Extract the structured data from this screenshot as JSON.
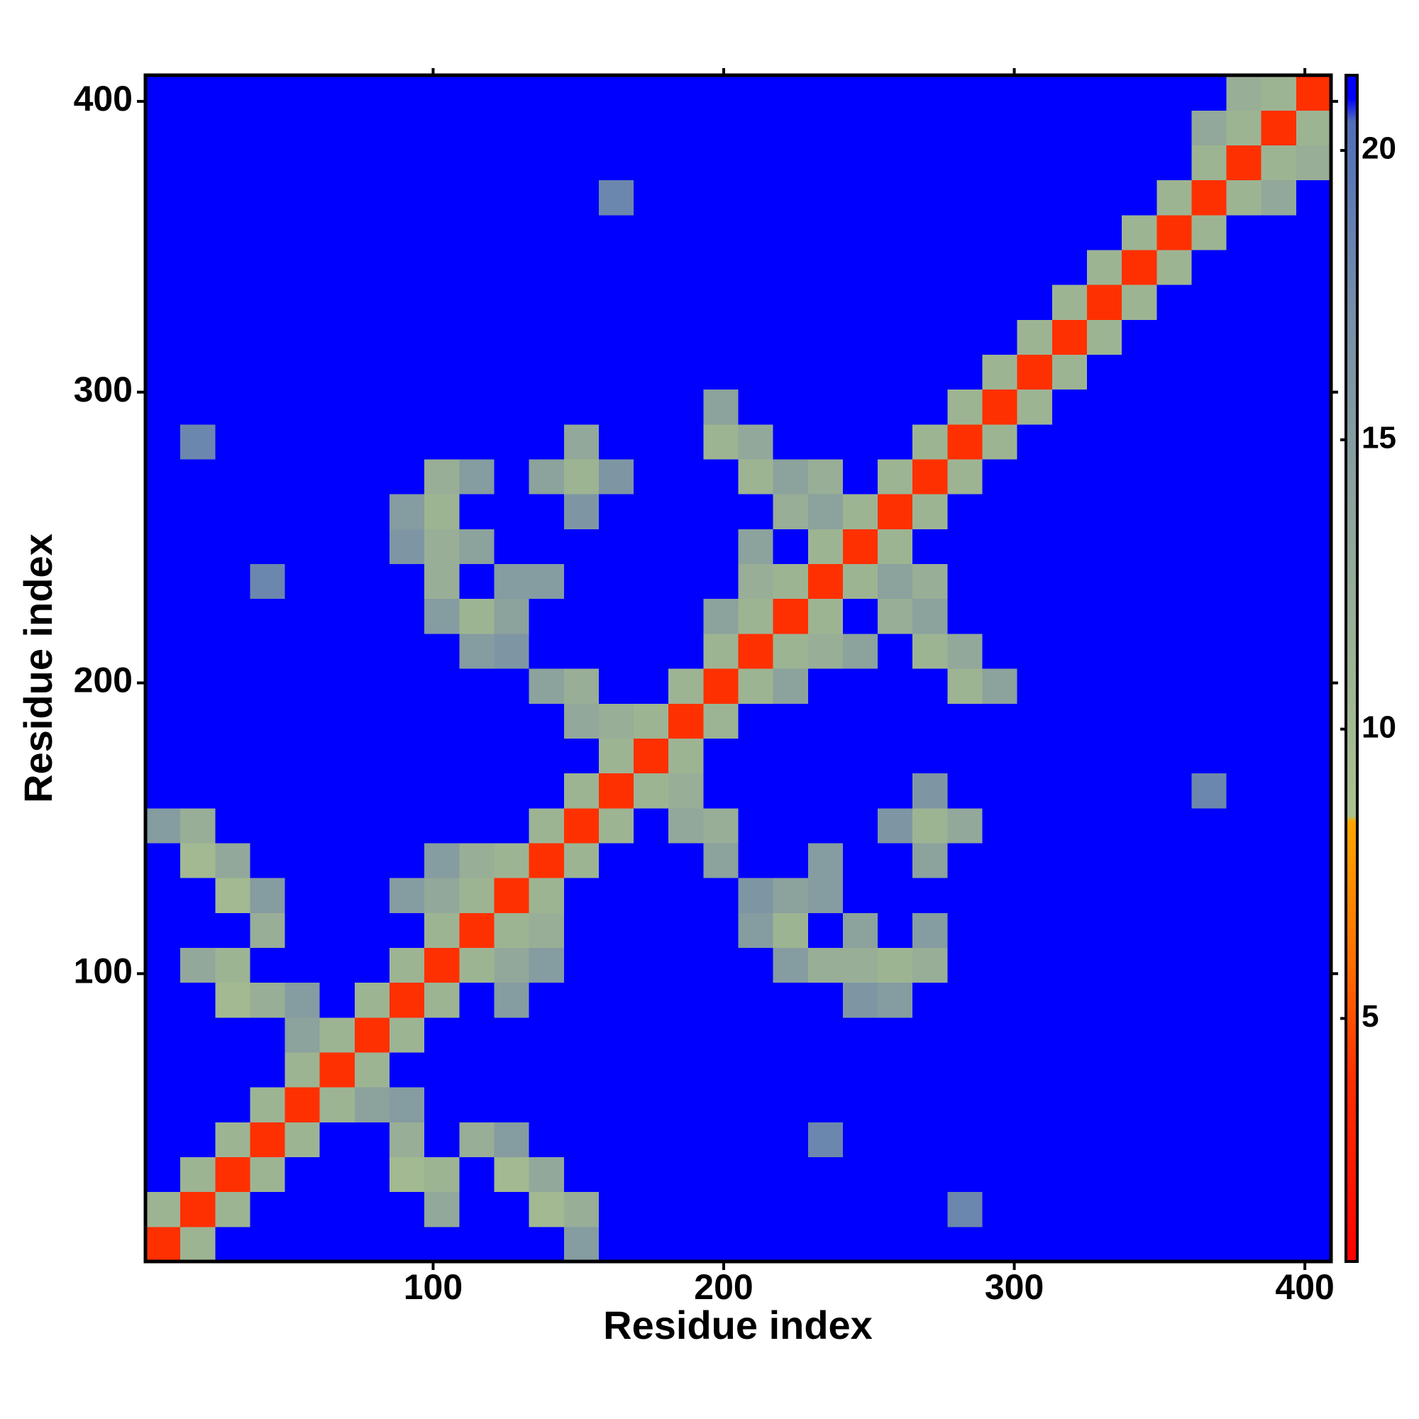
{
  "chart_data": {
    "type": "heatmap",
    "x_label": "Residue index",
    "y_label": "Residue index",
    "xlim": [
      1,
      409
    ],
    "ylim": [
      1,
      409
    ],
    "xticks": [
      100,
      200,
      300,
      400
    ],
    "yticks": [
      100,
      200,
      300,
      400
    ],
    "x_edges": [
      1,
      13,
      25,
      37,
      49,
      61,
      73,
      85,
      97,
      109,
      121,
      133,
      145,
      157,
      169,
      181,
      193,
      205,
      217,
      229,
      241,
      253,
      265,
      277,
      289,
      301,
      313,
      325,
      337,
      349,
      361,
      373,
      385,
      397,
      409
    ],
    "y_edges": [
      1,
      13,
      25,
      37,
      49,
      61,
      73,
      85,
      97,
      109,
      121,
      133,
      145,
      157,
      169,
      181,
      193,
      205,
      217,
      229,
      241,
      253,
      265,
      277,
      289,
      301,
      313,
      325,
      337,
      349,
      361,
      373,
      385,
      397,
      409
    ],
    "zlim": [
      0.8,
      21.3
    ],
    "zticks": [
      5,
      10,
      15,
      20
    ],
    "colorscale": [
      {
        "value": 0.8,
        "color": "#ff0000"
      },
      {
        "value": 4,
        "color": "#ff3000"
      },
      {
        "value": 6,
        "color": "#ff7000"
      },
      {
        "value": 8.4,
        "color": "#ffa500"
      },
      {
        "value": 8.5,
        "color": "#a9c28d"
      },
      {
        "value": 12,
        "color": "#98ae96"
      },
      {
        "value": 17,
        "color": "#7890a8"
      },
      {
        "value": 20.5,
        "color": "#4f6fb8"
      },
      {
        "value": 20.9,
        "color": "#0000ff"
      },
      {
        "value": 21.3,
        "color": "#0000ff"
      }
    ],
    "z": [
      [
        4,
        11,
        21,
        21,
        21,
        21,
        21,
        21,
        21,
        21,
        21,
        21,
        15,
        21,
        21,
        21,
        21,
        21,
        21,
        21,
        21,
        21,
        21,
        21,
        21,
        21,
        21,
        21,
        21,
        21,
        21,
        21,
        21,
        21
      ],
      [
        11,
        4,
        11,
        21,
        21,
        21,
        21,
        21,
        13,
        21,
        21,
        10,
        12,
        21,
        21,
        21,
        21,
        21,
        21,
        21,
        21,
        21,
        21,
        18,
        21,
        21,
        21,
        21,
        21,
        21,
        21,
        21,
        21,
        21
      ],
      [
        21,
        11,
        4,
        11,
        21,
        21,
        21,
        10,
        11,
        21,
        10,
        13,
        21,
        21,
        21,
        21,
        21,
        21,
        21,
        21,
        21,
        21,
        21,
        21,
        21,
        21,
        21,
        21,
        21,
        21,
        21,
        21,
        21,
        21
      ],
      [
        21,
        21,
        11,
        4,
        11,
        21,
        21,
        12,
        21,
        12,
        15,
        21,
        21,
        21,
        21,
        21,
        21,
        21,
        21,
        18,
        21,
        21,
        21,
        21,
        21,
        21,
        21,
        21,
        21,
        21,
        21,
        21,
        21,
        21
      ],
      [
        21,
        21,
        21,
        11,
        4,
        11,
        14,
        15,
        21,
        21,
        21,
        21,
        21,
        21,
        21,
        21,
        21,
        21,
        21,
        21,
        21,
        21,
        21,
        21,
        21,
        21,
        21,
        21,
        21,
        21,
        21,
        21,
        21,
        21
      ],
      [
        21,
        21,
        21,
        21,
        11,
        4,
        11,
        21,
        21,
        21,
        21,
        21,
        21,
        21,
        21,
        21,
        21,
        21,
        21,
        21,
        21,
        21,
        21,
        21,
        21,
        21,
        21,
        21,
        21,
        21,
        21,
        21,
        21,
        21
      ],
      [
        21,
        21,
        21,
        21,
        14,
        11,
        4,
        11,
        21,
        21,
        21,
        21,
        21,
        21,
        21,
        21,
        21,
        21,
        21,
        21,
        21,
        21,
        21,
        21,
        21,
        21,
        21,
        21,
        21,
        21,
        21,
        21,
        21,
        21
      ],
      [
        21,
        21,
        10,
        12,
        15,
        21,
        11,
        4,
        11,
        21,
        15,
        21,
        21,
        21,
        21,
        21,
        21,
        21,
        21,
        21,
        16,
        15,
        21,
        21,
        21,
        21,
        21,
        21,
        21,
        21,
        21,
        21,
        21,
        21
      ],
      [
        21,
        13,
        11,
        21,
        21,
        21,
        21,
        11,
        4,
        11,
        13,
        15,
        21,
        21,
        21,
        21,
        21,
        21,
        15,
        12,
        12,
        11,
        12,
        21,
        21,
        21,
        21,
        21,
        21,
        21,
        21,
        21,
        21,
        21
      ],
      [
        21,
        21,
        21,
        12,
        21,
        21,
        21,
        21,
        11,
        4,
        11,
        12,
        21,
        21,
        21,
        21,
        21,
        15,
        11,
        21,
        14,
        21,
        15,
        21,
        21,
        21,
        21,
        21,
        21,
        21,
        21,
        21,
        21,
        21
      ],
      [
        21,
        21,
        10,
        15,
        21,
        21,
        21,
        15,
        13,
        11,
        4,
        11,
        21,
        21,
        21,
        21,
        21,
        16,
        14,
        15,
        21,
        21,
        21,
        21,
        21,
        21,
        21,
        21,
        21,
        21,
        21,
        21,
        21,
        21
      ],
      [
        21,
        10,
        13,
        21,
        21,
        21,
        21,
        21,
        15,
        12,
        11,
        4,
        11,
        21,
        21,
        21,
        14,
        21,
        21,
        15,
        21,
        21,
        14,
        21,
        21,
        21,
        21,
        21,
        21,
        21,
        21,
        21,
        21,
        21
      ],
      [
        15,
        12,
        21,
        21,
        21,
        21,
        21,
        21,
        21,
        21,
        21,
        11,
        4,
        11,
        21,
        13,
        12,
        21,
        21,
        21,
        21,
        16,
        11,
        13,
        21,
        21,
        21,
        21,
        21,
        21,
        21,
        21,
        21,
        21
      ],
      [
        21,
        21,
        21,
        21,
        21,
        21,
        21,
        21,
        21,
        21,
        21,
        21,
        11,
        4,
        11,
        12,
        21,
        21,
        21,
        21,
        21,
        21,
        16,
        21,
        21,
        21,
        21,
        21,
        21,
        21,
        18,
        21,
        21,
        21
      ],
      [
        21,
        21,
        21,
        21,
        21,
        21,
        21,
        21,
        21,
        21,
        21,
        21,
        21,
        11,
        4,
        11,
        21,
        21,
        21,
        21,
        21,
        21,
        21,
        21,
        21,
        21,
        21,
        21,
        21,
        21,
        21,
        21,
        21,
        21
      ],
      [
        21,
        21,
        21,
        21,
        21,
        21,
        21,
        21,
        21,
        21,
        21,
        21,
        13,
        12,
        11,
        4,
        11,
        21,
        21,
        21,
        21,
        21,
        21,
        21,
        21,
        21,
        21,
        21,
        21,
        21,
        21,
        21,
        21,
        21
      ],
      [
        21,
        21,
        21,
        21,
        21,
        21,
        21,
        21,
        21,
        21,
        21,
        14,
        12,
        21,
        21,
        11,
        4,
        11,
        14,
        21,
        21,
        21,
        21,
        11,
        14,
        21,
        21,
        21,
        21,
        21,
        21,
        21,
        21,
        21
      ],
      [
        21,
        21,
        21,
        21,
        21,
        21,
        21,
        21,
        21,
        15,
        16,
        21,
        21,
        21,
        21,
        21,
        11,
        4,
        11,
        12,
        14,
        21,
        11,
        13,
        21,
        21,
        21,
        21,
        21,
        21,
        21,
        21,
        21,
        21
      ],
      [
        21,
        21,
        21,
        21,
        21,
        21,
        21,
        21,
        15,
        11,
        14,
        21,
        21,
        21,
        21,
        21,
        14,
        11,
        4,
        11,
        21,
        12,
        14,
        21,
        21,
        21,
        21,
        21,
        21,
        21,
        21,
        21,
        21,
        21
      ],
      [
        21,
        21,
        21,
        18,
        21,
        21,
        21,
        21,
        12,
        21,
        15,
        15,
        21,
        21,
        21,
        21,
        21,
        12,
        11,
        4,
        11,
        14,
        12,
        21,
        21,
        21,
        21,
        21,
        21,
        21,
        21,
        21,
        21,
        21
      ],
      [
        21,
        21,
        21,
        21,
        21,
        21,
        21,
        16,
        12,
        14,
        21,
        21,
        21,
        21,
        21,
        21,
        21,
        14,
        21,
        11,
        4,
        11,
        21,
        21,
        21,
        21,
        21,
        21,
        21,
        21,
        21,
        21,
        21,
        21
      ],
      [
        21,
        21,
        21,
        21,
        21,
        21,
        21,
        15,
        11,
        21,
        21,
        21,
        16,
        21,
        21,
        21,
        21,
        21,
        12,
        14,
        11,
        4,
        11,
        21,
        21,
        21,
        21,
        21,
        21,
        21,
        21,
        21,
        21,
        21
      ],
      [
        21,
        21,
        21,
        21,
        21,
        21,
        21,
        21,
        12,
        15,
        21,
        14,
        11,
        16,
        21,
        21,
        21,
        11,
        14,
        12,
        21,
        11,
        4,
        11,
        21,
        21,
        21,
        21,
        21,
        21,
        21,
        21,
        21,
        21
      ],
      [
        21,
        18,
        21,
        21,
        21,
        21,
        21,
        21,
        21,
        21,
        21,
        21,
        13,
        21,
        21,
        21,
        11,
        13,
        21,
        21,
        21,
        21,
        11,
        4,
        11,
        21,
        21,
        21,
        21,
        21,
        21,
        21,
        21,
        21
      ],
      [
        21,
        21,
        21,
        21,
        21,
        21,
        21,
        21,
        21,
        21,
        21,
        21,
        21,
        21,
        21,
        21,
        14,
        21,
        21,
        21,
        21,
        21,
        21,
        11,
        4,
        11,
        21,
        21,
        21,
        21,
        21,
        21,
        21,
        21
      ],
      [
        21,
        21,
        21,
        21,
        21,
        21,
        21,
        21,
        21,
        21,
        21,
        21,
        21,
        21,
        21,
        21,
        21,
        21,
        21,
        21,
        21,
        21,
        21,
        21,
        11,
        4,
        11,
        21,
        21,
        21,
        21,
        21,
        21,
        21
      ],
      [
        21,
        21,
        21,
        21,
        21,
        21,
        21,
        21,
        21,
        21,
        21,
        21,
        21,
        21,
        21,
        21,
        21,
        21,
        21,
        21,
        21,
        21,
        21,
        21,
        21,
        11,
        4,
        11,
        21,
        21,
        21,
        21,
        21,
        21
      ],
      [
        21,
        21,
        21,
        21,
        21,
        21,
        21,
        21,
        21,
        21,
        21,
        21,
        21,
        21,
        21,
        21,
        21,
        21,
        21,
        21,
        21,
        21,
        21,
        21,
        21,
        21,
        11,
        4,
        11,
        21,
        21,
        21,
        21,
        21
      ],
      [
        21,
        21,
        21,
        21,
        21,
        21,
        21,
        21,
        21,
        21,
        21,
        21,
        21,
        21,
        21,
        21,
        21,
        21,
        21,
        21,
        21,
        21,
        21,
        21,
        21,
        21,
        21,
        11,
        4,
        11,
        21,
        21,
        21,
        21
      ],
      [
        21,
        21,
        21,
        21,
        21,
        21,
        21,
        21,
        21,
        21,
        21,
        21,
        21,
        21,
        21,
        21,
        21,
        21,
        21,
        21,
        21,
        21,
        21,
        21,
        21,
        21,
        21,
        21,
        11,
        4,
        11,
        21,
        21,
        21
      ],
      [
        21,
        21,
        21,
        21,
        21,
        21,
        21,
        21,
        21,
        21,
        21,
        21,
        21,
        18,
        21,
        21,
        21,
        21,
        21,
        21,
        21,
        21,
        21,
        21,
        21,
        21,
        21,
        21,
        21,
        11,
        4,
        11,
        13,
        21
      ],
      [
        21,
        21,
        21,
        21,
        21,
        21,
        21,
        21,
        21,
        21,
        21,
        21,
        21,
        21,
        21,
        21,
        21,
        21,
        21,
        21,
        21,
        21,
        21,
        21,
        21,
        21,
        21,
        21,
        21,
        21,
        11,
        4,
        11,
        12
      ],
      [
        21,
        21,
        21,
        21,
        21,
        21,
        21,
        21,
        21,
        21,
        21,
        21,
        21,
        21,
        21,
        21,
        21,
        21,
        21,
        21,
        21,
        21,
        21,
        21,
        21,
        21,
        21,
        21,
        21,
        21,
        13,
        11,
        4,
        11
      ],
      [
        21,
        21,
        21,
        21,
        21,
        21,
        21,
        21,
        21,
        21,
        21,
        21,
        21,
        21,
        21,
        21,
        21,
        21,
        21,
        21,
        21,
        21,
        21,
        21,
        21,
        21,
        21,
        21,
        21,
        21,
        21,
        12,
        11,
        4
      ]
    ]
  }
}
